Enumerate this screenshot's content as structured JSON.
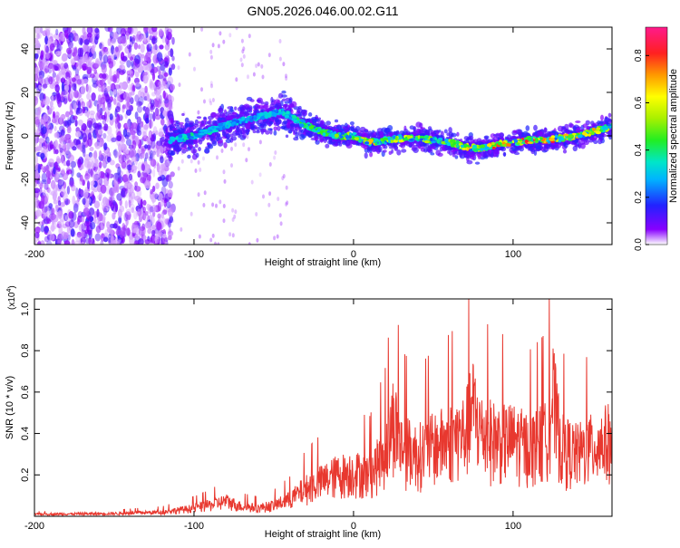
{
  "title": "GN05.2026.046.00.02.G11",
  "chart_data": [
    {
      "type": "heatmap",
      "xlabel": "Height of straight line (km)",
      "ylabel": "Frequency (Hz)",
      "xlim": [
        -200,
        162
      ],
      "ylim": [
        -50,
        50
      ],
      "xticks": [
        -200,
        -100,
        0,
        100
      ],
      "yticks": [
        -40,
        -20,
        0,
        20,
        40
      ],
      "colorbar": {
        "label": "Normalized spectral amplitude",
        "range": [
          0,
          0.92
        ],
        "ticks": [
          0.0,
          0.2,
          0.4,
          0.6,
          0.8
        ]
      },
      "trace": {
        "name": "frequency ridge",
        "x": [
          -115,
          -100,
          -80,
          -60,
          -45,
          -40,
          -30,
          -20,
          -10,
          0,
          10,
          20,
          30,
          40,
          50,
          60,
          70,
          80,
          90,
          100,
          110,
          120,
          130,
          140,
          150,
          160
        ],
        "y": [
          -2,
          0,
          5,
          9,
          11,
          9,
          5,
          2,
          0,
          0,
          -3,
          -2,
          -1,
          -1,
          -2,
          -3,
          -5,
          -6,
          -4,
          -3,
          -2,
          -2,
          -1,
          0,
          2,
          4
        ],
        "peak_amplitude": [
          0.35,
          0.4,
          0.35,
          0.35,
          0.35,
          0.4,
          0.45,
          0.5,
          0.55,
          0.6,
          0.78,
          0.6,
          0.65,
          0.65,
          0.55,
          0.55,
          0.7,
          0.75,
          0.85,
          0.8,
          0.9,
          0.85,
          0.8,
          0.75,
          0.75,
          0.55
        ]
      }
    },
    {
      "type": "line",
      "xlabel": "Height of straight line (km)",
      "ylabel": "SNR (10 * v/v)",
      "yscale_label": "(x10",
      "yscale_exponent": "4",
      "yscale_close": ")",
      "xlim": [
        -200,
        162
      ],
      "ylim": [
        0,
        1.05
      ],
      "xticks": [
        -200,
        -100,
        0,
        100
      ],
      "yticks": [
        0.2,
        0.4,
        0.6,
        0.8,
        1.0
      ],
      "series": [
        {
          "name": "SNR",
          "color": "#e8382f",
          "x": [
            -200,
            -150,
            -120,
            -100,
            -90,
            -80,
            -70,
            -60,
            -50,
            -40,
            -30,
            -20,
            -10,
            0,
            10,
            20,
            25,
            30,
            40,
            50,
            60,
            70,
            75,
            80,
            90,
            100,
            110,
            120,
            125,
            130,
            140,
            150,
            160
          ],
          "y": [
            0.015,
            0.02,
            0.03,
            0.06,
            0.08,
            0.11,
            0.07,
            0.06,
            0.08,
            0.12,
            0.2,
            0.25,
            0.3,
            0.32,
            0.3,
            0.45,
            0.7,
            0.5,
            0.45,
            0.5,
            0.55,
            0.6,
            0.78,
            0.6,
            0.55,
            0.55,
            0.5,
            0.55,
            0.85,
            0.5,
            0.45,
            0.5,
            0.55
          ]
        }
      ]
    }
  ]
}
